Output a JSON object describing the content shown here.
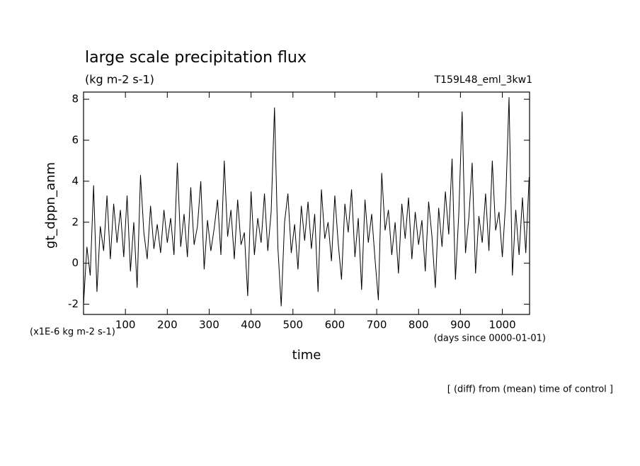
{
  "chart_data": {
    "type": "line",
    "title": "large scale precipitation flux",
    "subtitle": "(kg m-2 s-1)",
    "experiment": "T159L48_eml_3kw1",
    "y_label": "gt_dppn_anm",
    "y_unit": "(x1E-6 kg m-2 s-1)",
    "x_unit": "(days since 0000-01-01)",
    "x_label": "time",
    "note": "[ (diff) from (mean) time of control ]",
    "color": "#000000",
    "xlim": [
      0,
      1065
    ],
    "ylim": [
      -2.5,
      8.35
    ],
    "xticks": [
      100,
      200,
      300,
      400,
      500,
      600,
      700,
      800,
      900,
      1000
    ],
    "yticks": [
      -2,
      0,
      2,
      4,
      6,
      8
    ],
    "x": [
      0,
      8,
      16,
      24,
      32,
      40,
      48,
      56,
      64,
      72,
      80,
      88,
      96,
      104,
      112,
      120,
      128,
      136,
      144,
      152,
      160,
      168,
      176,
      184,
      192,
      200,
      208,
      216,
      224,
      232,
      240,
      248,
      256,
      264,
      272,
      280,
      288,
      296,
      304,
      312,
      320,
      328,
      336,
      344,
      352,
      360,
      368,
      376,
      384,
      392,
      400,
      408,
      416,
      424,
      432,
      440,
      448,
      456,
      464,
      472,
      480,
      488,
      496,
      504,
      512,
      520,
      528,
      536,
      544,
      552,
      560,
      568,
      576,
      584,
      592,
      600,
      608,
      616,
      624,
      632,
      640,
      648,
      656,
      664,
      672,
      680,
      688,
      696,
      704,
      712,
      720,
      728,
      736,
      744,
      752,
      760,
      768,
      776,
      784,
      792,
      800,
      808,
      816,
      824,
      832,
      840,
      848,
      856,
      864,
      872,
      880,
      888,
      896,
      904,
      912,
      920,
      928,
      936,
      944,
      952,
      960,
      968,
      976,
      984,
      992,
      1000,
      1008,
      1016,
      1024,
      1032,
      1040,
      1048,
      1056,
      1064
    ],
    "values": [
      -2.0,
      0.8,
      -0.6,
      3.8,
      -1.4,
      1.8,
      0.6,
      3.3,
      0.2,
      2.9,
      1.0,
      2.6,
      0.3,
      3.3,
      -0.4,
      2.0,
      -1.2,
      4.3,
      1.5,
      0.2,
      2.8,
      0.7,
      1.9,
      0.5,
      2.6,
      1.0,
      2.2,
      0.4,
      4.9,
      0.8,
      2.4,
      0.3,
      3.7,
      0.9,
      1.8,
      4.0,
      -0.3,
      2.1,
      0.6,
      1.7,
      3.1,
      0.4,
      5.0,
      1.3,
      2.6,
      0.2,
      3.1,
      0.9,
      1.5,
      -1.6,
      3.5,
      0.4,
      2.2,
      1.0,
      3.4,
      0.6,
      2.5,
      7.6,
      0.8,
      -2.1,
      2.0,
      3.4,
      0.5,
      1.9,
      -0.3,
      2.8,
      1.1,
      3.0,
      0.7,
      2.4,
      -1.4,
      3.6,
      1.2,
      2.0,
      0.1,
      3.3,
      1.0,
      -0.8,
      2.9,
      1.5,
      3.6,
      0.3,
      2.2,
      -1.3,
      3.1,
      1.0,
      2.4,
      0.2,
      -1.8,
      4.4,
      1.6,
      2.6,
      0.4,
      2.0,
      -0.5,
      2.9,
      1.2,
      3.2,
      0.2,
      2.5,
      0.9,
      2.1,
      -0.4,
      3.0,
      1.3,
      -1.2,
      2.7,
      0.8,
      3.5,
      1.4,
      5.1,
      -0.8,
      2.4,
      7.4,
      0.5,
      2.2,
      4.9,
      -0.5,
      2.3,
      1.0,
      3.4,
      0.6,
      5.0,
      1.6,
      2.5,
      0.3,
      3.0,
      8.1,
      -0.6,
      2.6,
      0.4,
      3.2,
      0.5,
      4.2
    ]
  }
}
